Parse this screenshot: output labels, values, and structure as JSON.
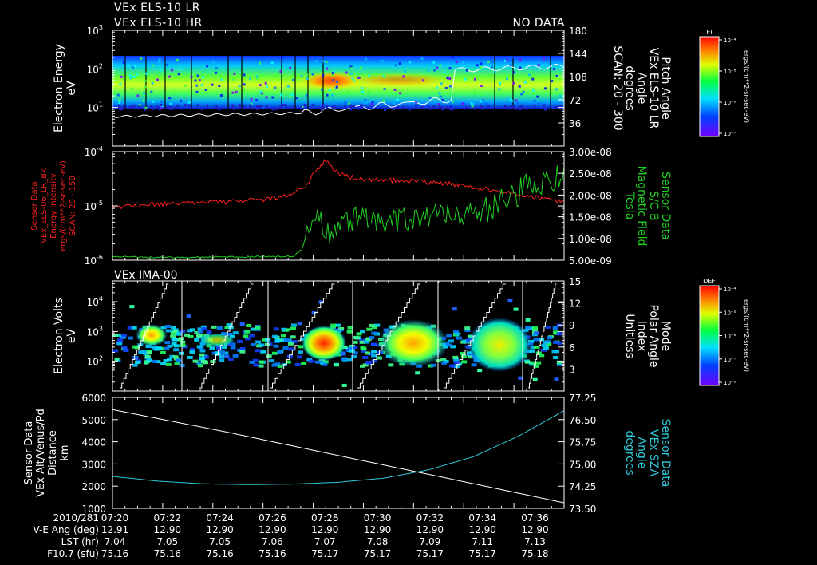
{
  "header": {
    "line1": "VEx ELS-10 LR",
    "line2": "VEx ELS-10 HR",
    "nodata": "NO DATA"
  },
  "colors": {
    "background": "#000000",
    "axes": "#ffffff",
    "red_series": "#ff2020",
    "green_series": "#20d020",
    "cyan_series": "#30c8d8"
  },
  "chart_data": [
    {
      "type": "heatmap",
      "name": "els-spectrogram",
      "ylabel": [
        "Electron Energy",
        "eV"
      ],
      "y_ticks": [
        {
          "base": "10",
          "exp": "1"
        },
        {
          "base": "10",
          "exp": "2"
        },
        {
          "base": "10",
          "exp": "3"
        }
      ],
      "ylim": [
        1,
        1000
      ],
      "right_ylabel": [
        "Pitch Angle",
        "VEx ELS-10 LR",
        "Angle",
        "degrees",
        "SCAN: 20 - 300"
      ],
      "right_ticks": [
        "36",
        "72",
        "108",
        "144",
        "180"
      ],
      "right_ylim": [
        0,
        180
      ],
      "colorbar": {
        "title": "El",
        "ticks": [
          "10⁻⁴",
          "10⁻⁵",
          "10⁻⁶",
          "10⁻⁷"
        ],
        "unit": "ergs/(cm**2-sr-sec-eV)"
      }
    },
    {
      "type": "line",
      "name": "energy-intensity-and-field",
      "ylabel": [
        "Sensor Data",
        "VEx_ELS-06_LR_Bk",
        "Energy Intensity",
        "ergs/(cm**2-sr-sec-eV)",
        "SCAN: 20 - 150"
      ],
      "y_ticks": [
        {
          "base": "10",
          "exp": "-6"
        },
        {
          "base": "10",
          "exp": "-5"
        },
        {
          "base": "10",
          "exp": "-4"
        }
      ],
      "ylim": [
        1e-06,
        0.0001
      ],
      "right_ylabel": [
        "Sensor Data",
        "S/C  B",
        "Magnetic Field",
        "Tesla"
      ],
      "right_ticks": [
        "5.00e-09",
        "1.00e-08",
        "1.50e-08",
        "2.00e-08",
        "2.50e-08",
        "3.00e-08"
      ],
      "right_ylim": [
        5e-09,
        3e-08
      ],
      "series": [
        {
          "name": "energy-intensity",
          "color": "red",
          "x": [
            0,
            0.06,
            0.13,
            0.18,
            0.26,
            0.33,
            0.39,
            0.43,
            0.45,
            0.47,
            0.49,
            0.5,
            0.53,
            0.56,
            0.6,
            0.68,
            0.75,
            0.8,
            0.85,
            0.9,
            0.95,
            1.0
          ],
          "values": [
            9.5e-06,
            1.05e-05,
            1.1e-05,
            1.1e-05,
            1.2e-05,
            1.3e-05,
            1.6e-05,
            2.4e-05,
            4.2e-05,
            6.8e-05,
            4.8e-05,
            3.8e-05,
            3.3e-05,
            3.1e-05,
            3e-05,
            2.8e-05,
            2.5e-05,
            2.2e-05,
            1.9e-05,
            1.6e-05,
            1.35e-05,
            1.2e-05
          ]
        },
        {
          "name": "magnetic-field",
          "color": "green",
          "x": [
            0,
            0.1,
            0.2,
            0.3,
            0.4,
            0.42,
            0.43,
            0.45,
            0.47,
            0.49,
            0.5,
            0.52,
            0.56,
            0.6,
            0.65,
            0.7,
            0.75,
            0.8,
            0.85,
            0.9,
            0.95,
            1.0
          ],
          "values": [
            5.9e-09,
            5.6e-09,
            5.7e-09,
            5.8e-09,
            5.9e-09,
            7.5e-09,
            1.1e-08,
            1.55e-08,
            1.2e-08,
            1.05e-08,
            1.2e-08,
            1.4e-08,
            1.5e-08,
            1.35e-08,
            1.45e-08,
            1.55e-08,
            1.5e-08,
            1.6e-08,
            1.75e-08,
            2.05e-08,
            2.3e-08,
            2.4e-08
          ]
        }
      ]
    },
    {
      "type": "heatmap",
      "name": "ima-spectrogram",
      "title": "VEx IMA-00",
      "ylabel": [
        "Electron Volts",
        "eV"
      ],
      "y_ticks": [
        {
          "base": "10",
          "exp": "2"
        },
        {
          "base": "10",
          "exp": "3"
        },
        {
          "base": "10",
          "exp": "4"
        }
      ],
      "ylim": [
        10,
        50000
      ],
      "right_ylabel": [
        "Mode",
        "Polar Angle",
        "Index",
        "Unitless"
      ],
      "right_ticks": [
        "3",
        "6",
        "9",
        "12",
        "15"
      ],
      "right_ylim": [
        0,
        15
      ],
      "colorbar": {
        "title": "DEF",
        "ticks": [
          "10⁻⁴",
          "10⁻⁵",
          "10⁻⁶",
          "10⁻⁷",
          "10⁻⁸"
        ],
        "unit": "ergs/(cm**2-sr-sec-eV)"
      }
    },
    {
      "type": "line",
      "name": "altitude-and-sza",
      "ylabel": [
        "Sensor Data",
        "VEx Alt/Venus/Pd",
        "Distance",
        "km"
      ],
      "y_ticks": [
        "1000",
        "2000",
        "3000",
        "4000",
        "5000",
        "6000"
      ],
      "ylim": [
        1000,
        6000
      ],
      "right_ylabel": [
        "Sensor Data",
        "VEx SZA",
        "Angle",
        "degrees"
      ],
      "right_ticks": [
        "73.50",
        "74.25",
        "75.00",
        "75.75",
        "76.50",
        "77.25"
      ],
      "right_ylim": [
        73.5,
        77.25
      ],
      "series": [
        {
          "name": "altitude",
          "color": "white",
          "x": [
            0,
            0.25,
            0.5,
            0.75,
            1.0
          ],
          "values": [
            5450,
            4450,
            3380,
            2320,
            1250
          ]
        },
        {
          "name": "solar-zenith-angle",
          "color": "cyan",
          "x": [
            0,
            0.1,
            0.2,
            0.3,
            0.4,
            0.5,
            0.6,
            0.7,
            0.8,
            0.9,
            1.0
          ],
          "values": [
            74.58,
            74.42,
            74.33,
            74.3,
            74.32,
            74.38,
            74.52,
            74.8,
            75.25,
            75.95,
            76.8
          ]
        }
      ]
    }
  ],
  "time_axis": {
    "rows": [
      {
        "label": "2010/281",
        "values": [
          "07:20",
          "07:22",
          "07:24",
          "07:26",
          "07:28",
          "07:30",
          "07:32",
          "07:34",
          "07:36"
        ]
      },
      {
        "label": "V-E Ang (deg)",
        "values": [
          "12.91",
          "12.90",
          "12.90",
          "12.90",
          "12.90",
          "12.90",
          "12.90",
          "12.90",
          "12.90"
        ]
      },
      {
        "label": "LST (hr)",
        "values": [
          "7.04",
          "7.05",
          "7.05",
          "7.06",
          "7.07",
          "7.08",
          "7.09",
          "7.11",
          "7.13"
        ]
      },
      {
        "label": "F10.7 (sfu)",
        "values": [
          "75.16",
          "75.16",
          "75.16",
          "75.16",
          "75.17",
          "75.17",
          "75.17",
          "75.17",
          "75.18"
        ]
      }
    ]
  }
}
